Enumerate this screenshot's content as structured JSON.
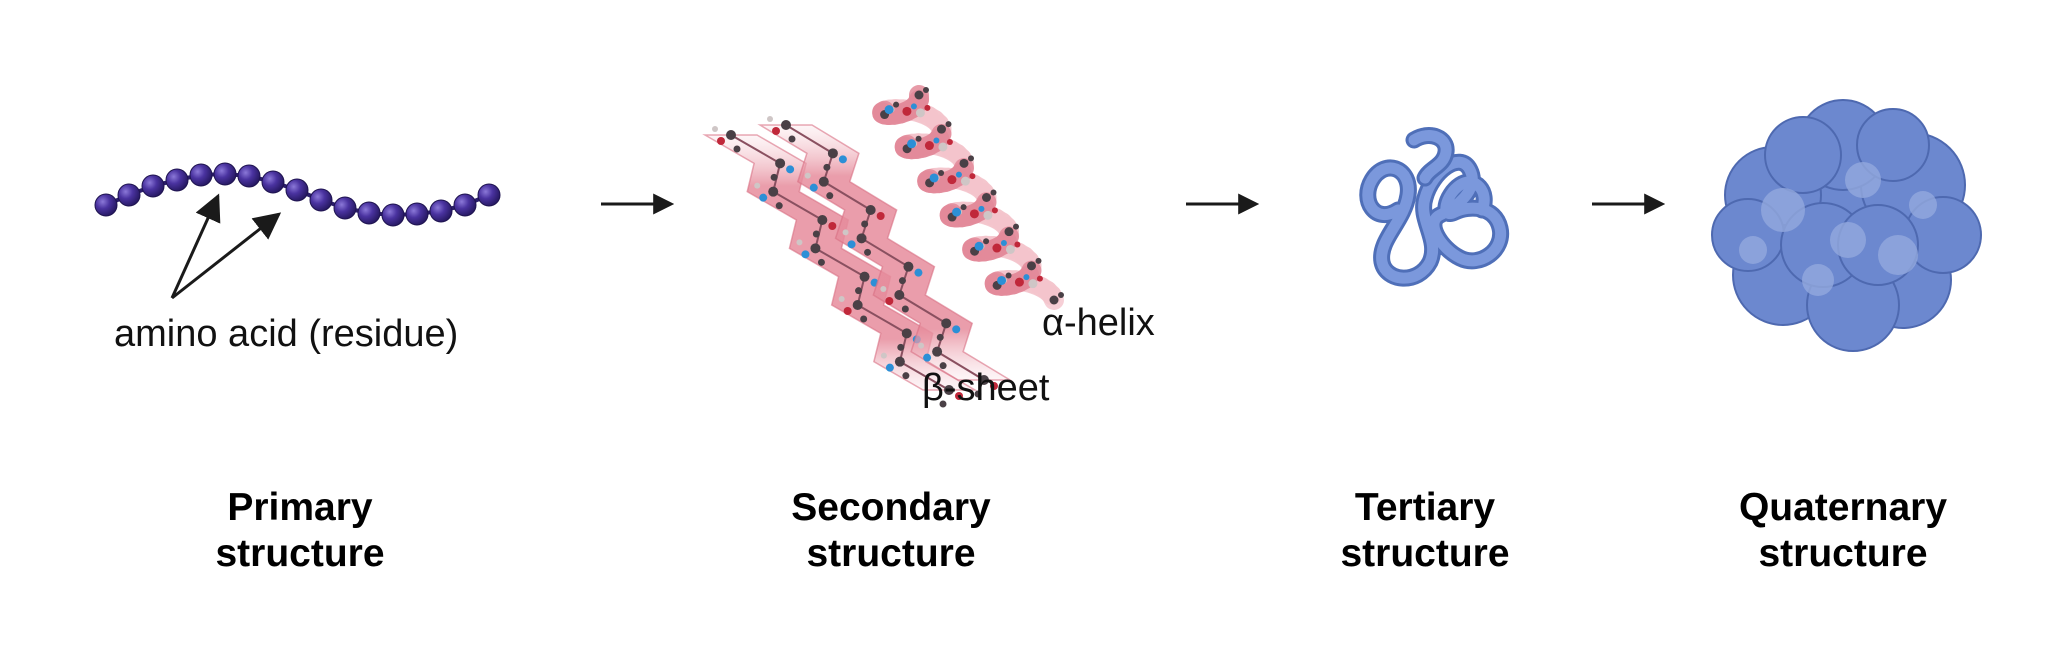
{
  "stages": [
    {
      "id": "primary",
      "title_line1": "Primary",
      "title_line2": "structure",
      "annotation": "amino acid (residue)"
    },
    {
      "id": "secondary",
      "title_line1": "Secondary",
      "title_line2": "structure",
      "helix_label": "α-helix",
      "sheet_label": "β-sheet"
    },
    {
      "id": "tertiary",
      "title_line1": "Tertiary",
      "title_line2": "structure"
    },
    {
      "id": "quaternary",
      "title_line1": "Quaternary",
      "title_line2": "structure"
    }
  ],
  "colors": {
    "residue": "#3f2a8f",
    "residue_highlight": "#7a63c9",
    "ribbon": "#e38a9a",
    "ribbon_light": "#f4c4cc",
    "atom_carbon": "#4a4046",
    "atom_oxygen": "#c0283a",
    "atom_nitrogen": "#2c8fd6",
    "atom_hydrogen": "#cfc6c6",
    "tertiary": "#6f8fd4",
    "quaternary": "#6c88cf",
    "quaternary_light": "#93a9dd",
    "arrow": "#1a1a1a"
  },
  "icons": [
    "residue-chain-icon",
    "beta-sheet-icon",
    "alpha-helix-icon",
    "tertiary-fold-icon",
    "quaternary-complex-icon"
  ]
}
